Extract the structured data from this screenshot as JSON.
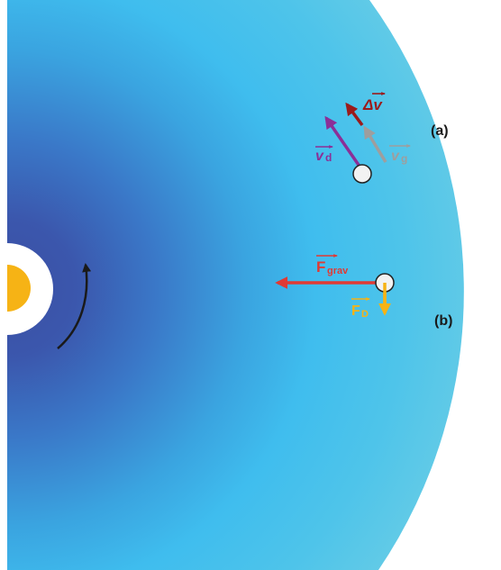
{
  "panels": {
    "a": "(a)",
    "b": "(b)"
  },
  "vectors": {
    "v_d": {
      "symbol": "v",
      "subscript": "d",
      "color": "#8b2f97"
    },
    "v_g": {
      "symbol": "v",
      "subscript": "g",
      "color": "#9e9e9e"
    },
    "delta_v": {
      "symbol": "Δv",
      "color": "#9b1b1b"
    },
    "f_grav": {
      "symbol": "F",
      "subscript": "grav",
      "color": "#e03a34"
    },
    "f_d": {
      "symbol": "F",
      "subscript": "D",
      "color": "#f6b315"
    }
  },
  "colors": {
    "disk_inner": "#3a5aad",
    "disk_outer": "#6acde5",
    "disk_mid": "#3cbcec",
    "star": "#f6b315",
    "rotation_arrow": "#1a1a1a",
    "particle_fill": "#f2f2f2",
    "particle_stroke": "#222222"
  }
}
